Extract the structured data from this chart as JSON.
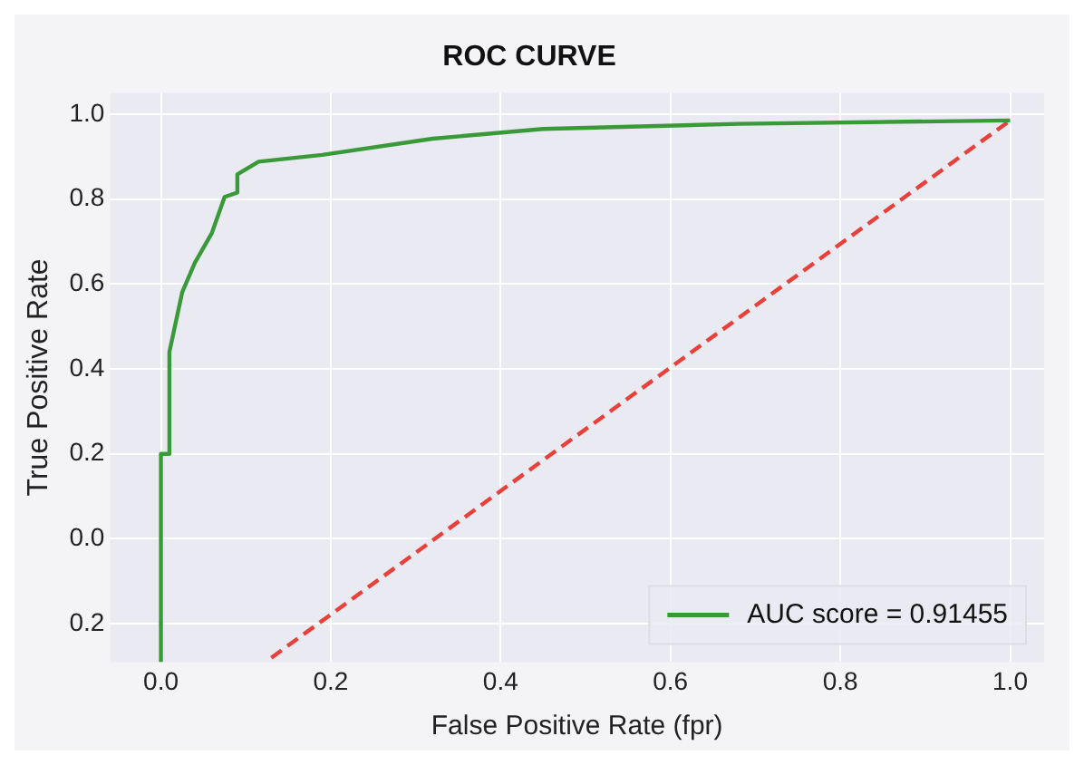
{
  "chart_data": {
    "type": "line",
    "title": "ROC CURVE",
    "xlabel": "False Positive Rate (fpr)",
    "ylabel": "True Positive Rate",
    "xlim": [
      -0.06,
      1.04
    ],
    "ylim": [
      -0.29,
      1.05
    ],
    "xticks": [
      {
        "value": 0,
        "label": "0.0"
      },
      0.2,
      0.4,
      0.6,
      0.8,
      {
        "value": 1,
        "label": "1.0"
      }
    ],
    "yticks": [
      {
        "value": -0.2,
        "label": "0.2"
      },
      {
        "value": 0.0,
        "label": "0.0"
      },
      {
        "value": 0.2,
        "label": "0.2"
      },
      {
        "value": 0.4,
        "label": "0.4"
      },
      {
        "value": 0.6,
        "label": "0.6"
      },
      {
        "value": 0.8,
        "label": "0.8"
      },
      {
        "value": 1.0,
        "label": "1.0"
      }
    ],
    "grid": true,
    "legend": "bottom right",
    "marker": "none",
    "series": [
      {
        "name": "AUC score = 0.91455",
        "color": "#3a9a3a",
        "line_style": "solid",
        "x": [
          0.0,
          0.0,
          0.01,
          0.01,
          0.025,
          0.04,
          0.06,
          0.075,
          0.09,
          0.09,
          0.115,
          0.19,
          0.32,
          0.45,
          0.68,
          1.0
        ],
        "values": [
          -0.29,
          0.2,
          0.2,
          0.44,
          0.58,
          0.65,
          0.72,
          0.805,
          0.815,
          0.858,
          0.888,
          0.904,
          0.942,
          0.965,
          0.977,
          0.985
        ]
      },
      {
        "color": "#e8403a",
        "line_style": "dashed",
        "x": [
          0.13,
          1.0
        ],
        "values": [
          -0.28,
          0.985
        ]
      }
    ]
  }
}
